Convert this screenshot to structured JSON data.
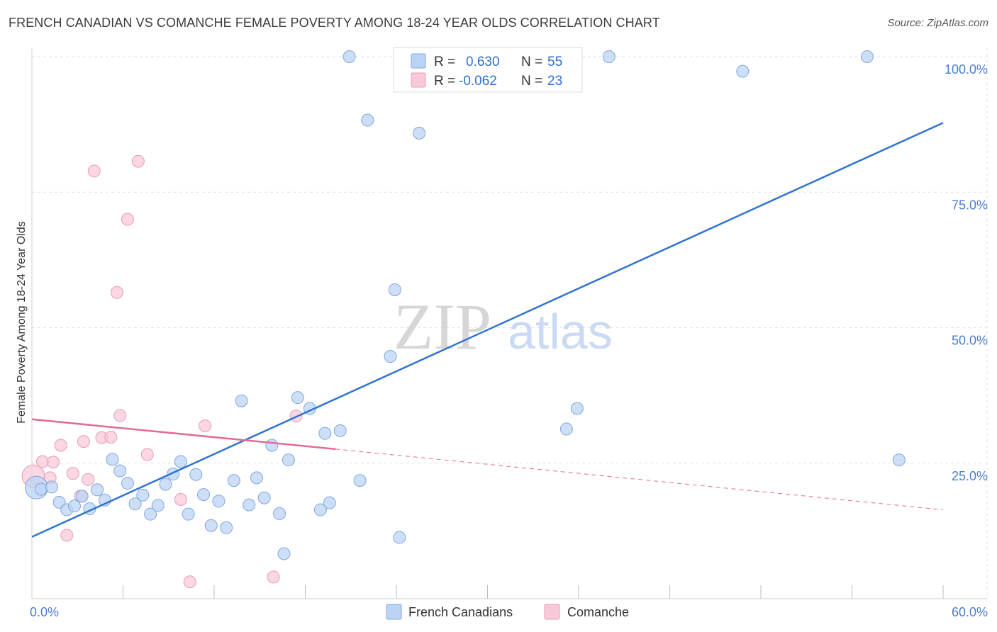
{
  "title": "FRENCH CANADIAN VS COMANCHE FEMALE POVERTY AMONG 18-24 YEAR OLDS CORRELATION CHART",
  "source": "Source: ZipAtlas.com",
  "watermark": {
    "zip": "ZIP",
    "atlas": "atlas"
  },
  "colors": {
    "blue": "#2f74d0",
    "blue_fill": "#bcd4f4",
    "pink": "#e46a95",
    "pink_fill": "#f8c9d8",
    "tick": "#4a7fcf"
  },
  "legend": {
    "r_label": "R =",
    "n_label": "N =",
    "rows": [
      {
        "r": "0.630",
        "n": "55"
      },
      {
        "r": "-0.062",
        "n": "23"
      }
    ]
  },
  "bottom_legend": [
    "French Canadians",
    "Comanche"
  ],
  "chart_data": {
    "type": "scatter",
    "xlabel": "",
    "ylabel": "Female Poverty Among 18-24 Year Olds",
    "xlim": [
      0,
      60
    ],
    "ylim": [
      0,
      100
    ],
    "x_tick_labels": [
      {
        "value": 0,
        "label": "0.0%"
      },
      {
        "value": 60,
        "label": "60.0%"
      }
    ],
    "y_tick_labels": [
      {
        "value": 25,
        "label": "25.0%"
      },
      {
        "value": 50,
        "label": "50.0%"
      },
      {
        "value": 75,
        "label": "75.0%"
      },
      {
        "value": 100,
        "label": "100.0%"
      }
    ],
    "grid": true,
    "legend_position": "top-center",
    "series": [
      {
        "name": "French Canadians",
        "r": 0.63,
        "n": 55,
        "trend": {
          "x": [
            0,
            60
          ],
          "y": [
            11.4,
            87.8
          ],
          "style": "solid"
        },
        "points": [
          [
            0.3,
            20.5
          ],
          [
            0.6,
            20.2
          ],
          [
            1.3,
            20.6
          ],
          [
            1.8,
            17.8
          ],
          [
            2.3,
            16.4
          ],
          [
            2.8,
            17.1
          ],
          [
            3.3,
            18.9
          ],
          [
            3.8,
            16.6
          ],
          [
            4.3,
            20.1
          ],
          [
            4.8,
            18.2
          ],
          [
            5.3,
            25.7
          ],
          [
            5.8,
            23.6
          ],
          [
            6.3,
            21.3
          ],
          [
            6.8,
            17.5
          ],
          [
            7.3,
            19.1
          ],
          [
            7.8,
            15.6
          ],
          [
            8.3,
            17.2
          ],
          [
            8.8,
            21.1
          ],
          [
            9.3,
            23.0
          ],
          [
            9.8,
            25.3
          ],
          [
            10.3,
            15.6
          ],
          [
            10.8,
            22.9
          ],
          [
            11.3,
            19.2
          ],
          [
            11.8,
            13.5
          ],
          [
            12.3,
            18.0
          ],
          [
            12.8,
            13.1
          ],
          [
            13.3,
            21.8
          ],
          [
            13.8,
            36.5
          ],
          [
            14.3,
            17.3
          ],
          [
            14.8,
            22.3
          ],
          [
            15.3,
            18.6
          ],
          [
            15.8,
            28.3
          ],
          [
            16.3,
            15.7
          ],
          [
            16.6,
            8.3
          ],
          [
            16.9,
            25.6
          ],
          [
            17.5,
            37.1
          ],
          [
            18.3,
            35.1
          ],
          [
            19.0,
            16.4
          ],
          [
            19.3,
            30.5
          ],
          [
            19.6,
            17.7
          ],
          [
            20.3,
            31.0
          ],
          [
            20.9,
            100.0
          ],
          [
            21.6,
            21.8
          ],
          [
            22.1,
            88.3
          ],
          [
            23.6,
            44.7
          ],
          [
            23.9,
            57.0
          ],
          [
            24.2,
            11.3
          ],
          [
            25.5,
            85.9
          ],
          [
            32.0,
            100.0
          ],
          [
            35.2,
            31.3
          ],
          [
            35.9,
            35.1
          ],
          [
            38.0,
            100.0
          ],
          [
            46.8,
            97.3
          ],
          [
            55.0,
            100.0
          ],
          [
            57.1,
            25.6
          ]
        ]
      },
      {
        "name": "Comanche",
        "r": -0.062,
        "n": 23,
        "trend": {
          "x": [
            0,
            20
          ],
          "y": [
            33.1,
            27.6
          ],
          "x_dashed": [
            20,
            60
          ],
          "y_dashed": [
            27.6,
            16.4
          ],
          "style": "solid-then-dashed"
        },
        "points": [
          [
            0.1,
            22.6
          ],
          [
            0.7,
            25.3
          ],
          [
            1.2,
            22.3
          ],
          [
            1.4,
            25.2
          ],
          [
            1.9,
            28.3
          ],
          [
            2.3,
            11.7
          ],
          [
            2.7,
            23.1
          ],
          [
            3.2,
            18.9
          ],
          [
            3.4,
            29.0
          ],
          [
            3.7,
            22.0
          ],
          [
            4.1,
            78.9
          ],
          [
            4.6,
            29.7
          ],
          [
            5.2,
            29.8
          ],
          [
            5.6,
            56.5
          ],
          [
            5.8,
            33.8
          ],
          [
            6.3,
            70.0
          ],
          [
            7.0,
            80.7
          ],
          [
            7.6,
            26.6
          ],
          [
            9.8,
            18.3
          ],
          [
            10.4,
            3.1
          ],
          [
            11.4,
            31.9
          ],
          [
            15.9,
            4.0
          ],
          [
            17.4,
            33.7
          ]
        ]
      }
    ]
  }
}
